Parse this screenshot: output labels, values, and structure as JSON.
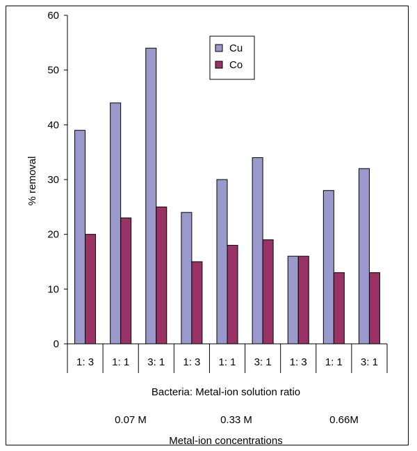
{
  "chart_data": {
    "type": "bar",
    "ylabel": "% removal",
    "ylim": [
      0,
      60
    ],
    "yticks": [
      0,
      10,
      20,
      30,
      40,
      50,
      60
    ],
    "categories": [
      "1:  3",
      "1:  1",
      "3:  1",
      "1:  3",
      "1:  1",
      "3:  1",
      "1:  3",
      "1:  1",
      "3:  1"
    ],
    "series": [
      {
        "name": "Cu",
        "color": "#9999cc",
        "values": [
          39,
          44,
          54,
          24,
          30,
          34,
          16,
          28,
          32
        ]
      },
      {
        "name": "Co",
        "color": "#993366",
        "values": [
          20,
          23,
          25,
          15,
          18,
          19,
          16,
          13,
          13
        ]
      }
    ],
    "xlabel": "Bacteria: Metal-ion solution ratio",
    "group_labels": [
      "0.07 M",
      "0.33 M",
      "0.66M"
    ],
    "group_axis_label": "Metal-ion concentrations",
    "legend_position": "top-center",
    "grid": false
  }
}
